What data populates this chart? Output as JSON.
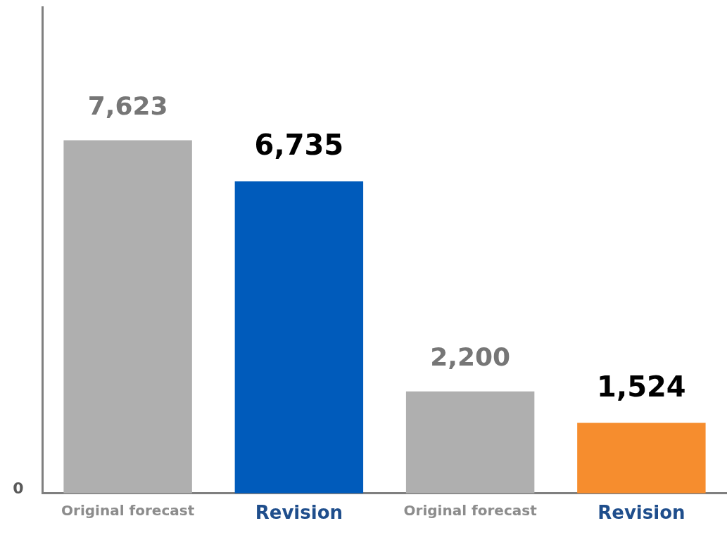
{
  "chart_data": {
    "type": "bar",
    "categories": [
      "Original forecast",
      "Revision",
      "Original forecast",
      "Revision"
    ],
    "values": [
      7623,
      6735,
      2200,
      1524
    ],
    "ylim": [
      0,
      10500
    ],
    "annotations": [
      "0"
    ],
    "colors": [
      "#afafaf",
      "#005bbb",
      "#afafaf",
      "#f68d2e"
    ],
    "value_labels": [
      "7,623",
      "6,735",
      "2,200",
      "1,524"
    ],
    "grid": false,
    "legend": false
  }
}
